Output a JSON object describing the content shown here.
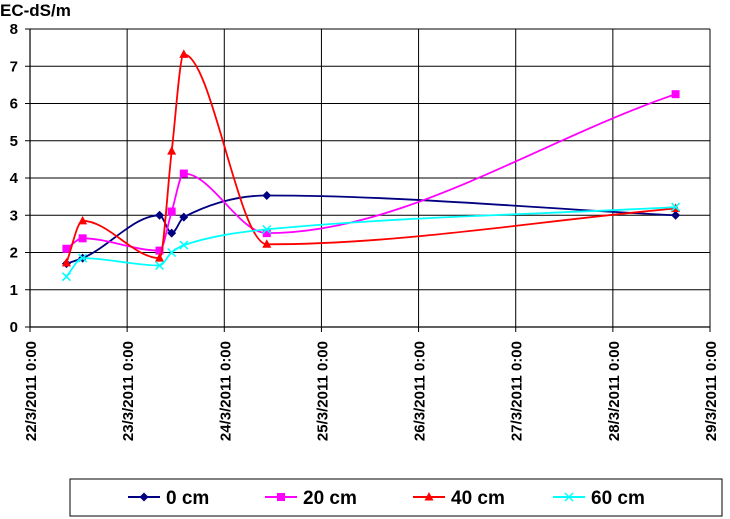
{
  "chart_data": {
    "type": "line",
    "title": "",
    "ylabel": "EC-dS/m",
    "xlabel": "",
    "ylim": [
      0,
      8
    ],
    "yticks": [
      "0",
      "1",
      "2",
      "3",
      "4",
      "5",
      "6",
      "7",
      "8"
    ],
    "xlim": [
      "22/3/2011 0:00",
      "29/3/2011 0:00"
    ],
    "xtick_labels": [
      "22/3/2011 0:00",
      "23/3/2011 0:00",
      "24/3/2011 0:00",
      "25/3/2011 0:00",
      "26/3/2011 0:00",
      "27/3/2011 0:00",
      "28/3/2011 0:00",
      "29/3/2011 0:00"
    ],
    "grid": "both",
    "legend": "bottom",
    "smooth": true,
    "series": [
      {
        "name": "0 cm",
        "color": "#000080",
        "marker": "diamond",
        "x": [
          "22/3/2011 9:00",
          "22/3/2011 13:00",
          "23/3/2011 8:00",
          "23/3/2011 11:00",
          "23/3/2011 14:00",
          "24/3/2011 10:30",
          "28/3/2011 15:30"
        ],
        "y": [
          1.7,
          1.85,
          3.0,
          2.52,
          2.95,
          3.53,
          3.0
        ]
      },
      {
        "name": "20 cm",
        "color": "#ff00ff",
        "marker": "square",
        "x": [
          "22/3/2011 9:00",
          "22/3/2011 13:00",
          "23/3/2011 8:00",
          "23/3/2011 11:00",
          "23/3/2011 14:00",
          "24/3/2011 10:30",
          "28/3/2011 15:30"
        ],
        "y": [
          2.1,
          2.38,
          2.05,
          3.1,
          4.12,
          2.52,
          6.25
        ]
      },
      {
        "name": "40 cm",
        "color": "#ff0000",
        "marker": "triangle",
        "x": [
          "22/3/2011 9:00",
          "22/3/2011 13:00",
          "23/3/2011 8:00",
          "23/3/2011 11:00",
          "23/3/2011 14:00",
          "24/3/2011 10:30",
          "28/3/2011 15:30"
        ],
        "y": [
          1.72,
          2.85,
          1.85,
          4.72,
          7.32,
          2.22,
          3.18
        ]
      },
      {
        "name": "60 cm",
        "color": "#00ffff",
        "marker": "x",
        "x": [
          "22/3/2011 9:00",
          "22/3/2011 13:00",
          "23/3/2011 8:00",
          "23/3/2011 11:00",
          "23/3/2011 14:00",
          "24/3/2011 10:30",
          "28/3/2011 15:30"
        ],
        "y": [
          1.35,
          1.85,
          1.65,
          2.0,
          2.2,
          2.62,
          3.22
        ]
      }
    ]
  }
}
